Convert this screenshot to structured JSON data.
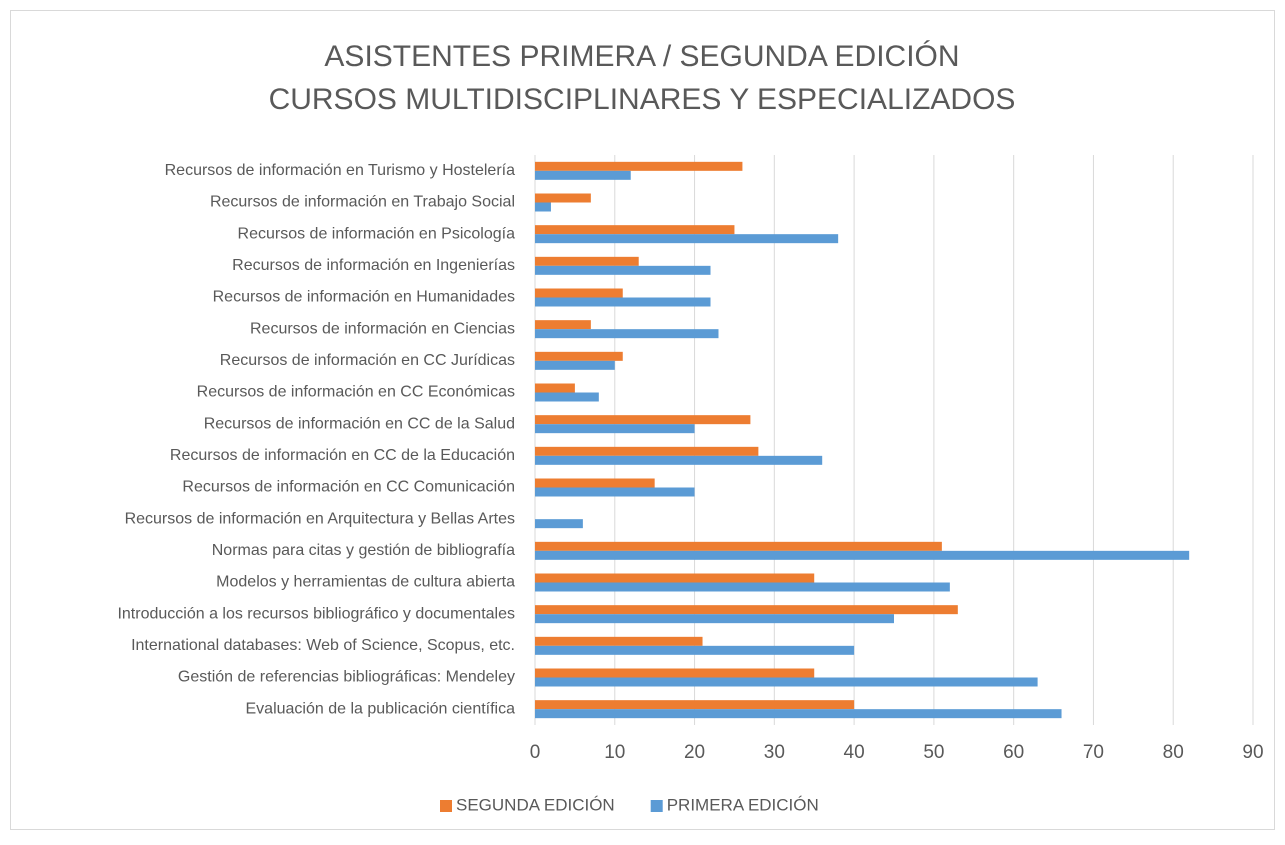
{
  "chart_data": {
    "type": "hbar",
    "title": "ASISTENTES PRIMERA / SEGUNDA EDICIÓN",
    "subtitle": "CURSOS MULTIDISCIPLINARES Y ESPECIALIZADOS",
    "categories": [
      "Recursos de información en Turismo y Hostelería",
      "Recursos de información en Trabajo Social",
      "Recursos de información en Psicología",
      "Recursos de información en Ingenierías",
      "Recursos de información en Humanidades",
      "Recursos de información en Ciencias",
      "Recursos de información en CC Jurídicas",
      "Recursos de información en CC Económicas",
      "Recursos de información en CC de la Salud",
      "Recursos de información en CC de la Educación",
      "Recursos de información en CC Comunicación",
      "Recursos de información en Arquitectura y Bellas Artes",
      "Normas para citas y gestión de bibliografía",
      "Modelos y herramientas de cultura abierta",
      "Introducción a los recursos bibliográfico y documentales",
      "International databases: Web of Science, Scopus, etc.",
      "Gestión de referencias bibliográficas: Mendeley",
      "Evaluación de la publicación científica"
    ],
    "series": [
      {
        "name": "SEGUNDA EDICIÓN",
        "color": "#ed7d31",
        "values": [
          26,
          7,
          25,
          13,
          11,
          7,
          11,
          5,
          27,
          28,
          15,
          0,
          51,
          35,
          53,
          21,
          35,
          40
        ]
      },
      {
        "name": "PRIMERA EDICIÓN",
        "color": "#5b9bd5",
        "values": [
          12,
          2,
          38,
          22,
          22,
          23,
          10,
          8,
          20,
          36,
          20,
          6,
          82,
          52,
          45,
          40,
          63,
          66
        ]
      }
    ],
    "xlim": [
      0,
      90
    ],
    "xticks": [
      0,
      10,
      20,
      30,
      40,
      50,
      60,
      70,
      80,
      90
    ],
    "grid": true,
    "legend": "bottom"
  }
}
